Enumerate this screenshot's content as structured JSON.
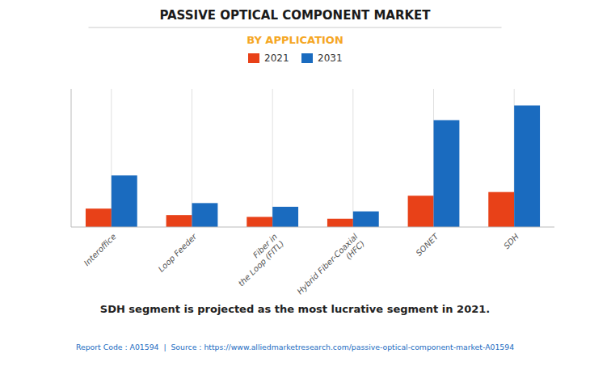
{
  "chart_data": {
    "type": "bar",
    "title": "PASSIVE OPTICAL COMPONENT MARKET",
    "subtitle": "BY APPLICATION",
    "categories": [
      "Interoffice",
      "Loop Feeder",
      "Fiber in\nthe Loop (FITL)",
      "Hybrid Fiber-Coaxial\n(HFC)",
      "SONET",
      "SDH"
    ],
    "series": [
      {
        "name": "2021",
        "color": "#e84118",
        "values": [
          10,
          6.5,
          5.5,
          4.5,
          17,
          19
        ]
      },
      {
        "name": "2031",
        "color": "#1a6bbf",
        "values": [
          28,
          13,
          11,
          8.5,
          58,
          66
        ]
      }
    ],
    "ylim": [
      0,
      75
    ],
    "grid": true,
    "legend": "top",
    "tick_labels": "x",
    "footer": "SDH segment is projected as the most lucrative segment in 2021.",
    "source": "Report Code : A01594  |  Source : https://www.alliedmarketresearch.com/passive-optical-component-market-A01594"
  }
}
